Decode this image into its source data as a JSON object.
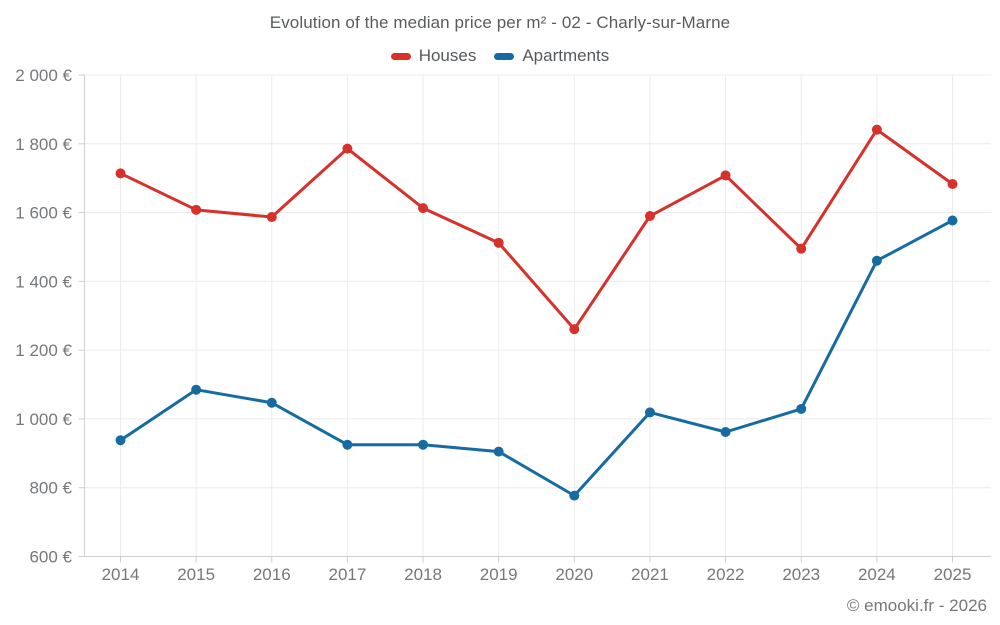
{
  "title": "Evolution of the median price per m² - 02 - Charly-sur-Marne",
  "footer": "© emooki.fr - 2026",
  "colors": {
    "houses": "#d7312c",
    "apartments": "#176ba3",
    "grid": "#ececec",
    "axis": "#cfcfcf",
    "label_text": "#75787b",
    "title_text": "#595c5e"
  },
  "chart_data": {
    "type": "line",
    "title": "Evolution of the median price per m² - 02 - Charly-sur-Marne",
    "x": [
      "2014",
      "2015",
      "2016",
      "2017",
      "2018",
      "2019",
      "2020",
      "2021",
      "2022",
      "2023",
      "2024",
      "2025"
    ],
    "series": [
      {
        "name": "Houses",
        "color": "#d7312c",
        "values": [
          1714,
          1608,
          1587,
          1786,
          1613,
          1512,
          1261,
          1590,
          1708,
          1495,
          1841,
          1683
        ]
      },
      {
        "name": "Apartments",
        "color": "#176ba3",
        "values": [
          938,
          1085,
          1047,
          925,
          925,
          905,
          777,
          1019,
          962,
          1029,
          1460,
          1577
        ]
      }
    ],
    "xlabel": "",
    "ylabel": "",
    "ylim": [
      600,
      2000
    ],
    "ytick_step": 200,
    "ytick_labels": [
      "600 €",
      "800 €",
      "1 000 €",
      "1 200 €",
      "1 400 €",
      "1 600 €",
      "1 800 €",
      "2 000 €"
    ],
    "grid": true,
    "legend_position": "top-center"
  }
}
